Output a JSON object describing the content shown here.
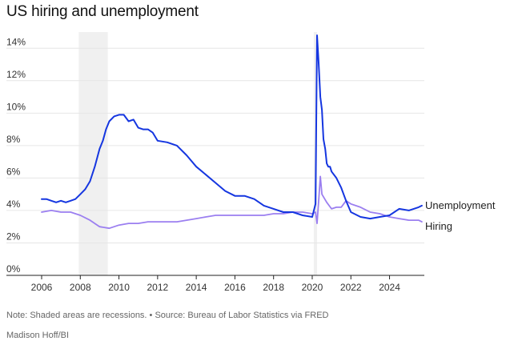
{
  "title": "US hiring and unemployment",
  "note": "Note: Shaded areas are recessions. • Source: Bureau of Labor Statistics via FRED",
  "credit": "Madison Hoff/BI",
  "chart_data": {
    "type": "line",
    "title": "US hiring and unemployment",
    "xlim": [
      2006,
      2025.8
    ],
    "ylim": [
      0,
      15
    ],
    "y_ticks": [
      0,
      2,
      4,
      6,
      8,
      10,
      12,
      14
    ],
    "y_tick_labels": [
      "0%",
      "2%",
      "4%",
      "6%",
      "8%",
      "10%",
      "12%",
      "14%"
    ],
    "x_ticks": [
      2006,
      2008,
      2010,
      2012,
      2014,
      2016,
      2018,
      2020,
      2022,
      2024
    ],
    "x_tick_labels": [
      "2006",
      "2008",
      "2010",
      "2012",
      "2014",
      "2016",
      "2018",
      "2020",
      "2022",
      "2024"
    ],
    "grid": "horizontal",
    "recessions": [
      [
        2007.92,
        2009.42
      ],
      [
        2020.08,
        2020.25
      ]
    ],
    "colors": {
      "unemployment": "#1536e0",
      "hiring": "#9b7ff0",
      "recession": "#f0f0f0",
      "grid": "#e6e6e6",
      "axis": "#222222"
    },
    "series": [
      {
        "name": "Unemployment",
        "x": [
          2006.0,
          2006.25,
          2006.5,
          2006.75,
          2007.0,
          2007.25,
          2007.5,
          2007.75,
          2008.0,
          2008.25,
          2008.5,
          2008.75,
          2009.0,
          2009.17,
          2009.33,
          2009.5,
          2009.75,
          2010.0,
          2010.25,
          2010.5,
          2010.75,
          2011.0,
          2011.25,
          2011.5,
          2011.75,
          2012.0,
          2012.5,
          2013.0,
          2013.5,
          2014.0,
          2014.5,
          2015.0,
          2015.5,
          2016.0,
          2016.5,
          2017.0,
          2017.5,
          2018.0,
          2018.5,
          2019.0,
          2019.5,
          2020.0,
          2020.17,
          2020.25,
          2020.33,
          2020.42,
          2020.5,
          2020.58,
          2020.67,
          2020.75,
          2020.83,
          2020.92,
          2021.0,
          2021.25,
          2021.5,
          2021.75,
          2022.0,
          2022.5,
          2023.0,
          2023.5,
          2024.0,
          2024.5,
          2025.0,
          2025.5,
          2025.67
        ],
        "values": [
          4.7,
          4.7,
          4.6,
          4.5,
          4.6,
          4.5,
          4.6,
          4.7,
          5.0,
          5.3,
          5.8,
          6.7,
          7.8,
          8.3,
          9.0,
          9.5,
          9.8,
          9.9,
          9.9,
          9.5,
          9.6,
          9.1,
          9.0,
          9.0,
          8.8,
          8.3,
          8.2,
          8.0,
          7.4,
          6.7,
          6.2,
          5.7,
          5.2,
          4.9,
          4.9,
          4.7,
          4.3,
          4.1,
          3.9,
          3.9,
          3.7,
          3.6,
          4.4,
          14.8,
          13.2,
          11.0,
          10.2,
          8.4,
          7.8,
          6.9,
          6.7,
          6.7,
          6.4,
          6.0,
          5.4,
          4.6,
          3.9,
          3.6,
          3.5,
          3.6,
          3.7,
          4.1,
          4.0,
          4.2,
          4.3
        ]
      },
      {
        "name": "Hiring",
        "x": [
          2006.0,
          2006.5,
          2007.0,
          2007.5,
          2008.0,
          2008.5,
          2009.0,
          2009.5,
          2010.0,
          2010.5,
          2011.0,
          2011.5,
          2012.0,
          2012.5,
          2013.0,
          2013.5,
          2014.0,
          2014.5,
          2015.0,
          2015.5,
          2016.0,
          2016.5,
          2017.0,
          2017.5,
          2018.0,
          2018.5,
          2019.0,
          2019.5,
          2020.0,
          2020.17,
          2020.25,
          2020.33,
          2020.42,
          2020.5,
          2020.75,
          2021.0,
          2021.25,
          2021.5,
          2021.75,
          2022.0,
          2022.5,
          2023.0,
          2023.5,
          2024.0,
          2024.5,
          2025.0,
          2025.5,
          2025.67
        ],
        "values": [
          3.9,
          4.0,
          3.9,
          3.9,
          3.7,
          3.4,
          3.0,
          2.9,
          3.1,
          3.2,
          3.2,
          3.3,
          3.3,
          3.3,
          3.3,
          3.4,
          3.5,
          3.6,
          3.7,
          3.7,
          3.7,
          3.7,
          3.7,
          3.7,
          3.8,
          3.8,
          3.9,
          3.9,
          3.8,
          3.9,
          3.2,
          4.5,
          6.1,
          5.0,
          4.5,
          4.1,
          4.2,
          4.2,
          4.6,
          4.4,
          4.2,
          3.9,
          3.8,
          3.6,
          3.5,
          3.4,
          3.4,
          3.3
        ]
      }
    ]
  }
}
